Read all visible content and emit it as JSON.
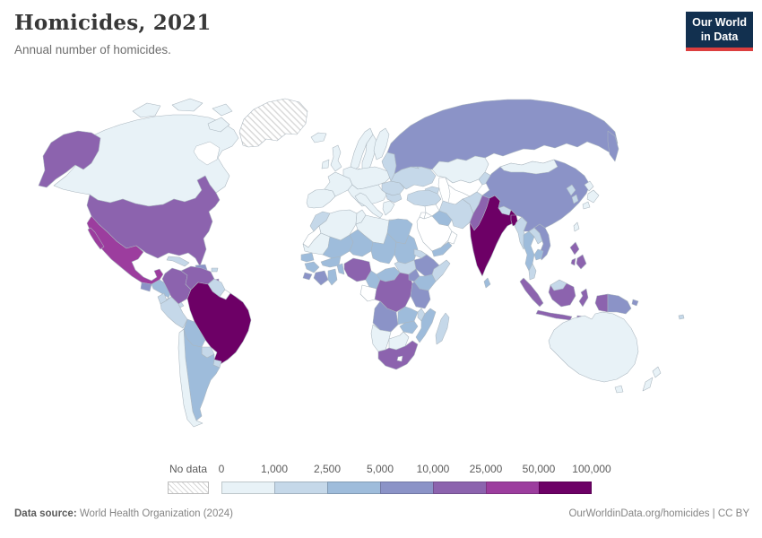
{
  "header": {
    "title": "Homicides, 2021",
    "subtitle": "Annual number of homicides.",
    "logo_line1": "Our World",
    "logo_line2": "in Data",
    "logo_bg": "#12304f",
    "logo_accent": "#dc3e3e"
  },
  "footer": {
    "source_label": "Data source:",
    "source_text": " World Health Organization (2024)",
    "credit": "OurWorldinData.org/homicides | CC BY"
  },
  "chart_data": {
    "type": "choropleth",
    "title": "Homicides, 2021",
    "subtitle": "Annual number of homicides.",
    "unit": "homicides per year",
    "no_data": {
      "label": "No data",
      "pattern": "diagonal-hatch"
    },
    "tick_labels": [
      "0",
      "1,000",
      "2,500",
      "5,000",
      "10,000",
      "25,000",
      "50,000",
      "100,000"
    ],
    "legend_bins": [
      {
        "range": [
          0,
          1000
        ],
        "color": "#e8f2f7"
      },
      {
        "range": [
          1000,
          2500
        ],
        "color": "#c5d8e9"
      },
      {
        "range": [
          2500,
          5000
        ],
        "color": "#9ebcdb"
      },
      {
        "range": [
          5000,
          10000
        ],
        "color": "#8b93c7"
      },
      {
        "range": [
          10000,
          25000
        ],
        "color": "#8c63ae"
      },
      {
        "range": [
          25000,
          50000
        ],
        "color": "#9c3d9e"
      },
      {
        "range": [
          50000,
          100000
        ],
        "color": "#6d0066"
      }
    ],
    "border_color": "#aab6bf",
    "countries": {
      "greenland": "hatch",
      "canada": 1,
      "usa": 5,
      "mexico": 6,
      "guatemala": 4,
      "honduras-nicaragua": 3,
      "costa-rica-panama": 2,
      "cuba": 2,
      "jamaica": 3,
      "hispaniola": 4,
      "puerto-rico": 2,
      "trinidad": 5,
      "colombia": 5,
      "venezuela": 5,
      "guyana-suriname": 2,
      "french-guiana": 0,
      "ecuador": 2,
      "peru": 2,
      "brazil": 7,
      "bolivia": 3,
      "paraguay": 2,
      "uruguay": 2,
      "argentina": 3,
      "chile": 1,
      "iceland": 1,
      "ireland": 1,
      "uk": 1,
      "norway": 1,
      "sweden": 1,
      "finland": 1,
      "denmark": 1,
      "iberia": 1,
      "france": 1,
      "central-europe": 1,
      "balkans": 1,
      "italy": 1,
      "greece": 1,
      "romania": 2,
      "bulgaria": 2,
      "ukraine": 2,
      "belarus": 2,
      "baltics": 2,
      "russia": 4,
      "kazakhstan": 1,
      "caucasus": 2,
      "central-asia": 0,
      "kyrgyzstan": 2,
      "turkey": 2,
      "syria": 0,
      "iraq": 3,
      "iran": 2,
      "afghanistan": 2,
      "pakistan": 5,
      "jordan": 0,
      "saudi-arabia": 0,
      "yemen": 3,
      "oman": 0,
      "india": 7,
      "nepal": 2,
      "bangladesh": 7,
      "sri-lanka": 3,
      "myanmar": 2,
      "thailand": 3,
      "laos": 2,
      "vietnam": 4,
      "cambodia": 3,
      "malaysia": 2,
      "borneo-malaysia": 2,
      "indonesia": 5,
      "philippines": 5,
      "papua-new-guinea": 4,
      "taiwan": 1,
      "china": 4,
      "mongolia": 1,
      "north-korea": 2,
      "south-korea": 2,
      "japan": 1,
      "australia": 1,
      "new-zealand": 1,
      "fiji": 2,
      "morocco": 2,
      "western-sahara": 0,
      "algeria": 1,
      "tunisia": 1,
      "libya": 1,
      "egypt": 3,
      "mauritania": 1,
      "mali": 3,
      "niger": 3,
      "chad": 3,
      "sudan": 3,
      "south-sudan": 2,
      "eritrea": 2,
      "ethiopia": 4,
      "somalia": 2,
      "senegal": 3,
      "guinea": 3,
      "sierra-leone": 4,
      "ivory-coast": 4,
      "ghana": 3,
      "burkina-faso": 3,
      "benin-togo": 3,
      "nigeria": 5,
      "cameroon": 3,
      "central-african-republic": 3,
      "gabon-congo": 0,
      "drc": 5,
      "uganda": 4,
      "kenya": 3,
      "tanzania": 4,
      "angola": 4,
      "zambia": 3,
      "malawi": 2,
      "mozambique": 3,
      "zimbabwe": 3,
      "namibia": 1,
      "botswana": 1,
      "south-africa": 5,
      "lesotho": 0,
      "madagascar": 2
    }
  }
}
